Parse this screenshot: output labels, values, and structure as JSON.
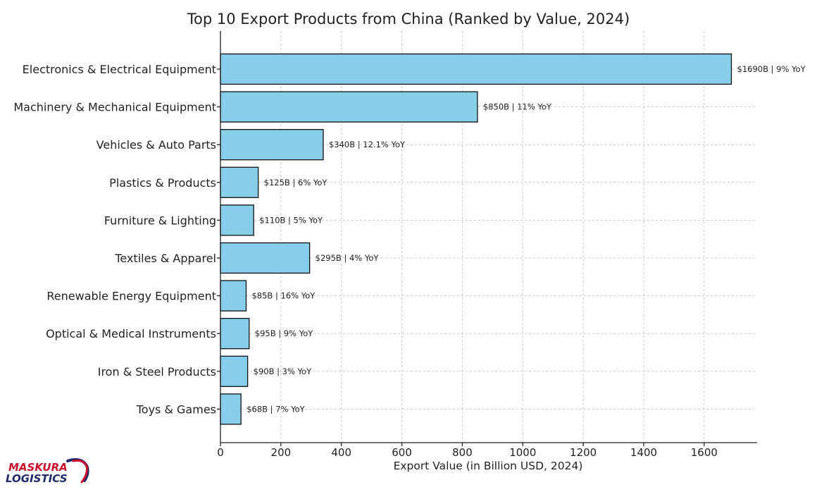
{
  "chart_data": {
    "type": "bar",
    "orientation": "horizontal",
    "title": "Top 10 Export Products from China (Ranked by Value, 2024)",
    "xlabel": "Export Value (in Billion USD, 2024)",
    "ylabel": "",
    "xlim": [
      0,
      1775
    ],
    "xticks": [
      0,
      200,
      400,
      600,
      800,
      1000,
      1200,
      1400,
      1600
    ],
    "grid": true,
    "bar_color": "#87CEEB",
    "edge_color": "#111111",
    "categories": [
      "Electronics & Electrical Equipment",
      "Machinery & Mechanical Equipment",
      "Vehicles & Auto Parts",
      "Plastics & Products",
      "Furniture & Lighting",
      "Textiles & Apparel",
      "Renewable Energy Equipment",
      "Optical & Medical Instruments",
      "Iron & Steel Products",
      "Toys & Games"
    ],
    "values": [
      1690,
      850,
      340,
      125,
      110,
      295,
      85,
      95,
      90,
      68
    ],
    "data_labels": [
      "$1690B | 9% YoY",
      "$850B | 11% YoY",
      "$340B | 12.1% YoY",
      "$125B | 6% YoY",
      "$110B | 5% YoY",
      "$295B | 4% YoY",
      "$85B | 16% YoY",
      "$95B | 9% YoY",
      "$90B | 3% YoY",
      "$68B | 7% YoY"
    ]
  },
  "logo": {
    "line1": "MASKURA",
    "line2": "LOGISTICS",
    "color_primary": "#C8102E",
    "color_secondary": "#1F2A6B"
  }
}
